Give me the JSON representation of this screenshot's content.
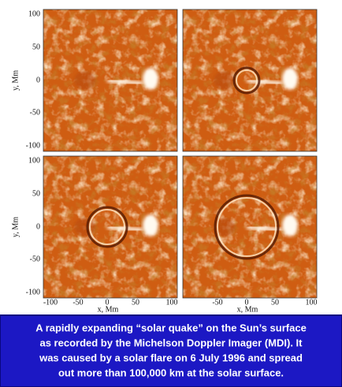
{
  "panels": {
    "y_axis_label": "y, Mm",
    "x_axis_label": "x, Mm",
    "y_ticks": [
      "100",
      "50",
      "0",
      "-50",
      "-100"
    ],
    "x_ticks_left": [
      "-100",
      "-50",
      "0",
      "50",
      "100"
    ],
    "x_ticks_right": [
      "-50",
      "0",
      "50",
      "100"
    ]
  },
  "caption": {
    "lines": [
      "A rapidly expanding “solar quake” on the Sun’s surface",
      "as recorded by the Michelson Doppler Imager (MDI).  It",
      "was caused by a solar flare on 6 July 1996 and spread",
      "out more than 100,000 km at the solar surface."
    ]
  }
}
